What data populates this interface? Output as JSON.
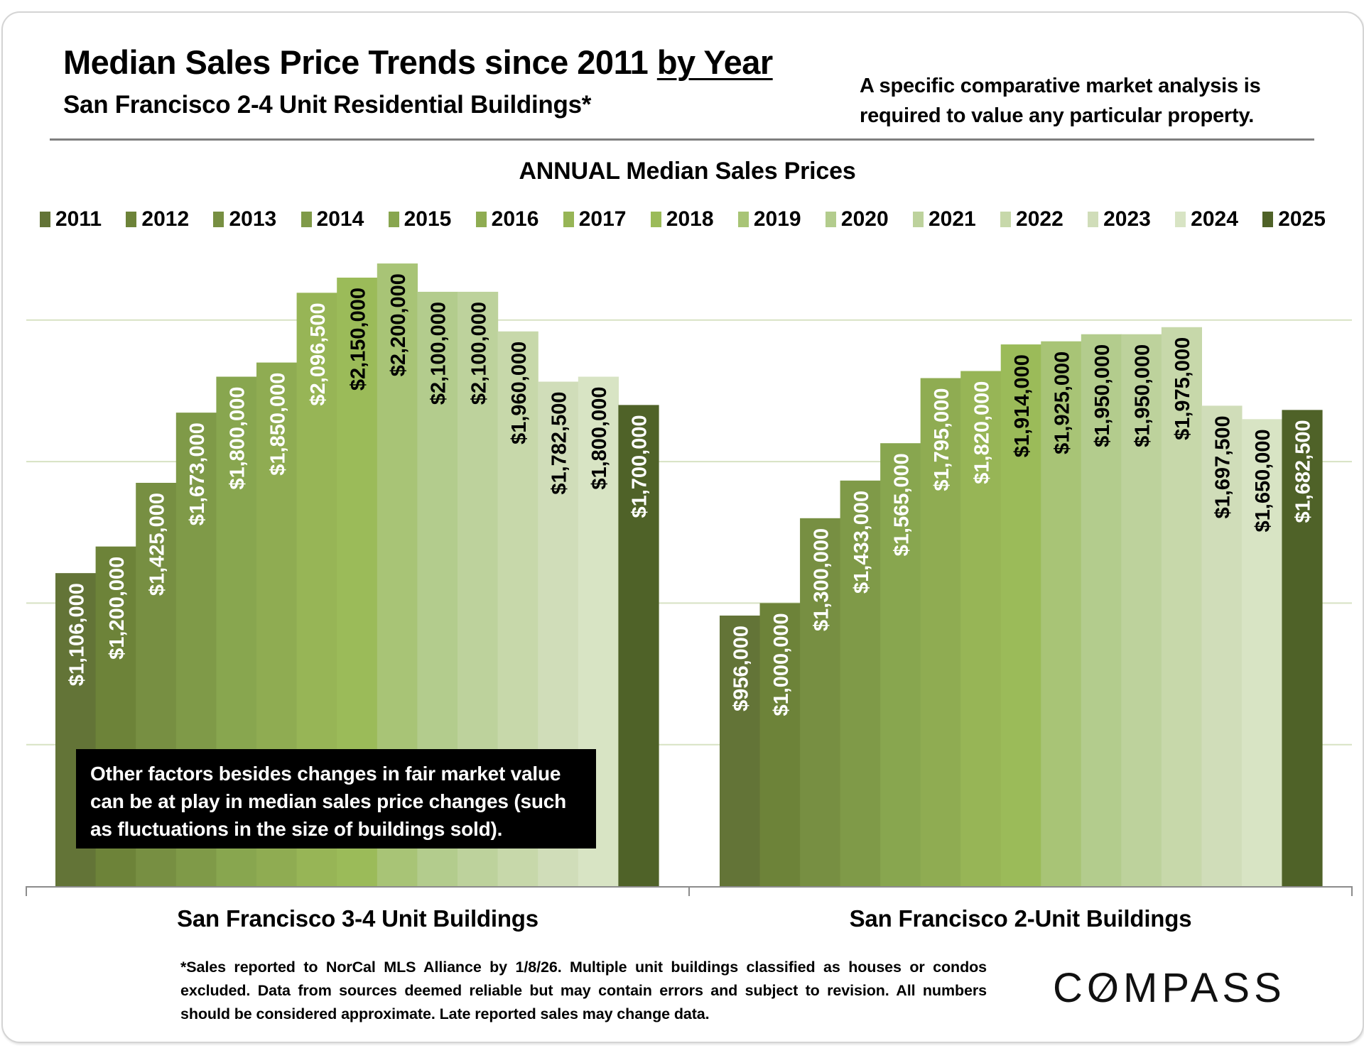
{
  "header": {
    "title_main": "Median Sales Price Trends since 2011 ",
    "title_underlined": "by Year",
    "subtitle": "San Francisco 2-4 Unit Residential Buildings*",
    "note_line1": "A specific comparative market analysis is",
    "note_line2": "required to value any particular property."
  },
  "callout": {
    "line1": "Other factors besides changes in fair market value",
    "line2": "can be at play in median sales price changes (such",
    "line3": "as fluctuations in the size of buildings sold)."
  },
  "footer": {
    "footnote": "*Sales reported to NorCal MLS Alliance by 1/8/26. Multiple unit buildings classified as houses or condos excluded. Data from sources deemed reliable but may contain errors and subject to revision. All numbers  should be considered approximate.  Late reported sales may change data.",
    "logo_text": "COMPASS",
    "logo_prefix": "C",
    "logo_o": "O",
    "logo_suffix": "MPASS"
  },
  "chart_data": {
    "type": "bar",
    "title": "ANNUAL Median Sales Prices",
    "xlabel": "",
    "ylabel": "",
    "ylim": [
      0,
      2200000
    ],
    "grid": true,
    "gridlines": [
      500000,
      1000000,
      1500000,
      2000000
    ],
    "legend_position": "top",
    "categories": [
      "San Francisco 3-4 Unit Buildings",
      "San Francisco 2-Unit Buildings"
    ],
    "series": [
      {
        "name": "2011",
        "color": "#637437",
        "label_color": "#ffffff",
        "values": [
          1106000,
          956000
        ],
        "labels": [
          "$1,106,000",
          "$956,000"
        ]
      },
      {
        "name": "2012",
        "color": "#6d8339",
        "label_color": "#ffffff",
        "values": [
          1200000,
          1000000
        ],
        "labels": [
          "$1,200,000",
          "$1,000,000"
        ]
      },
      {
        "name": "2013",
        "color": "#778f42",
        "label_color": "#ffffff",
        "values": [
          1425000,
          1300000
        ],
        "labels": [
          "$1,425,000",
          "$1,300,000"
        ]
      },
      {
        "name": "2014",
        "color": "#7f9a48",
        "label_color": "#ffffff",
        "values": [
          1673000,
          1433000
        ],
        "labels": [
          "$1,673,000",
          "$1,433,000"
        ]
      },
      {
        "name": "2015",
        "color": "#88a64f",
        "label_color": "#ffffff",
        "values": [
          1800000,
          1565000
        ],
        "labels": [
          "$1,800,000",
          "$1,565,000"
        ]
      },
      {
        "name": "2016",
        "color": "#8fac52",
        "label_color": "#ffffff",
        "values": [
          1850000,
          1795000
        ],
        "labels": [
          "$1,850,000",
          "$1,795,000"
        ]
      },
      {
        "name": "2017",
        "color": "#97b556",
        "label_color": "#ffffff",
        "values": [
          2096500,
          1820000
        ],
        "labels": [
          "$2,096,500",
          "$1,820,000"
        ]
      },
      {
        "name": "2018",
        "color": "#9bbb59",
        "label_color": "#000000",
        "values": [
          2150000,
          1914000
        ],
        "labels": [
          "$2,150,000",
          "$1,914,000"
        ]
      },
      {
        "name": "2019",
        "color": "#a8c476",
        "label_color": "#000000",
        "values": [
          2200000,
          1925000
        ],
        "labels": [
          "$2,200,000",
          "$1,925,000"
        ]
      },
      {
        "name": "2020",
        "color": "#b3cc8d",
        "label_color": "#000000",
        "values": [
          2100000,
          1950000
        ],
        "labels": [
          "$2,100,000",
          "$1,950,000"
        ]
      },
      {
        "name": "2021",
        "color": "#bdd29c",
        "label_color": "#000000",
        "values": [
          2100000,
          1950000
        ],
        "labels": [
          "$2,100,000",
          "$1,950,000"
        ]
      },
      {
        "name": "2022",
        "color": "#c7d8aa",
        "label_color": "#000000",
        "values": [
          1960000,
          1975000
        ],
        "labels": [
          "$1,960,000",
          "$1,975,000"
        ]
      },
      {
        "name": "2023",
        "color": "#d0ddb9",
        "label_color": "#000000",
        "values": [
          1782500,
          1697500
        ],
        "labels": [
          "$1,782,500",
          "$1,697,500"
        ]
      },
      {
        "name": "2024",
        "color": "#d8e4c4",
        "label_color": "#000000",
        "values": [
          1800000,
          1650000
        ],
        "labels": [
          "$1,800,000",
          "$1,650,000"
        ]
      },
      {
        "name": "2025",
        "color": "#4f6228",
        "label_color": "#ffffff",
        "values": [
          1700000,
          1682500
        ],
        "labels": [
          "$1,700,000",
          "$1,682,500"
        ]
      }
    ]
  }
}
